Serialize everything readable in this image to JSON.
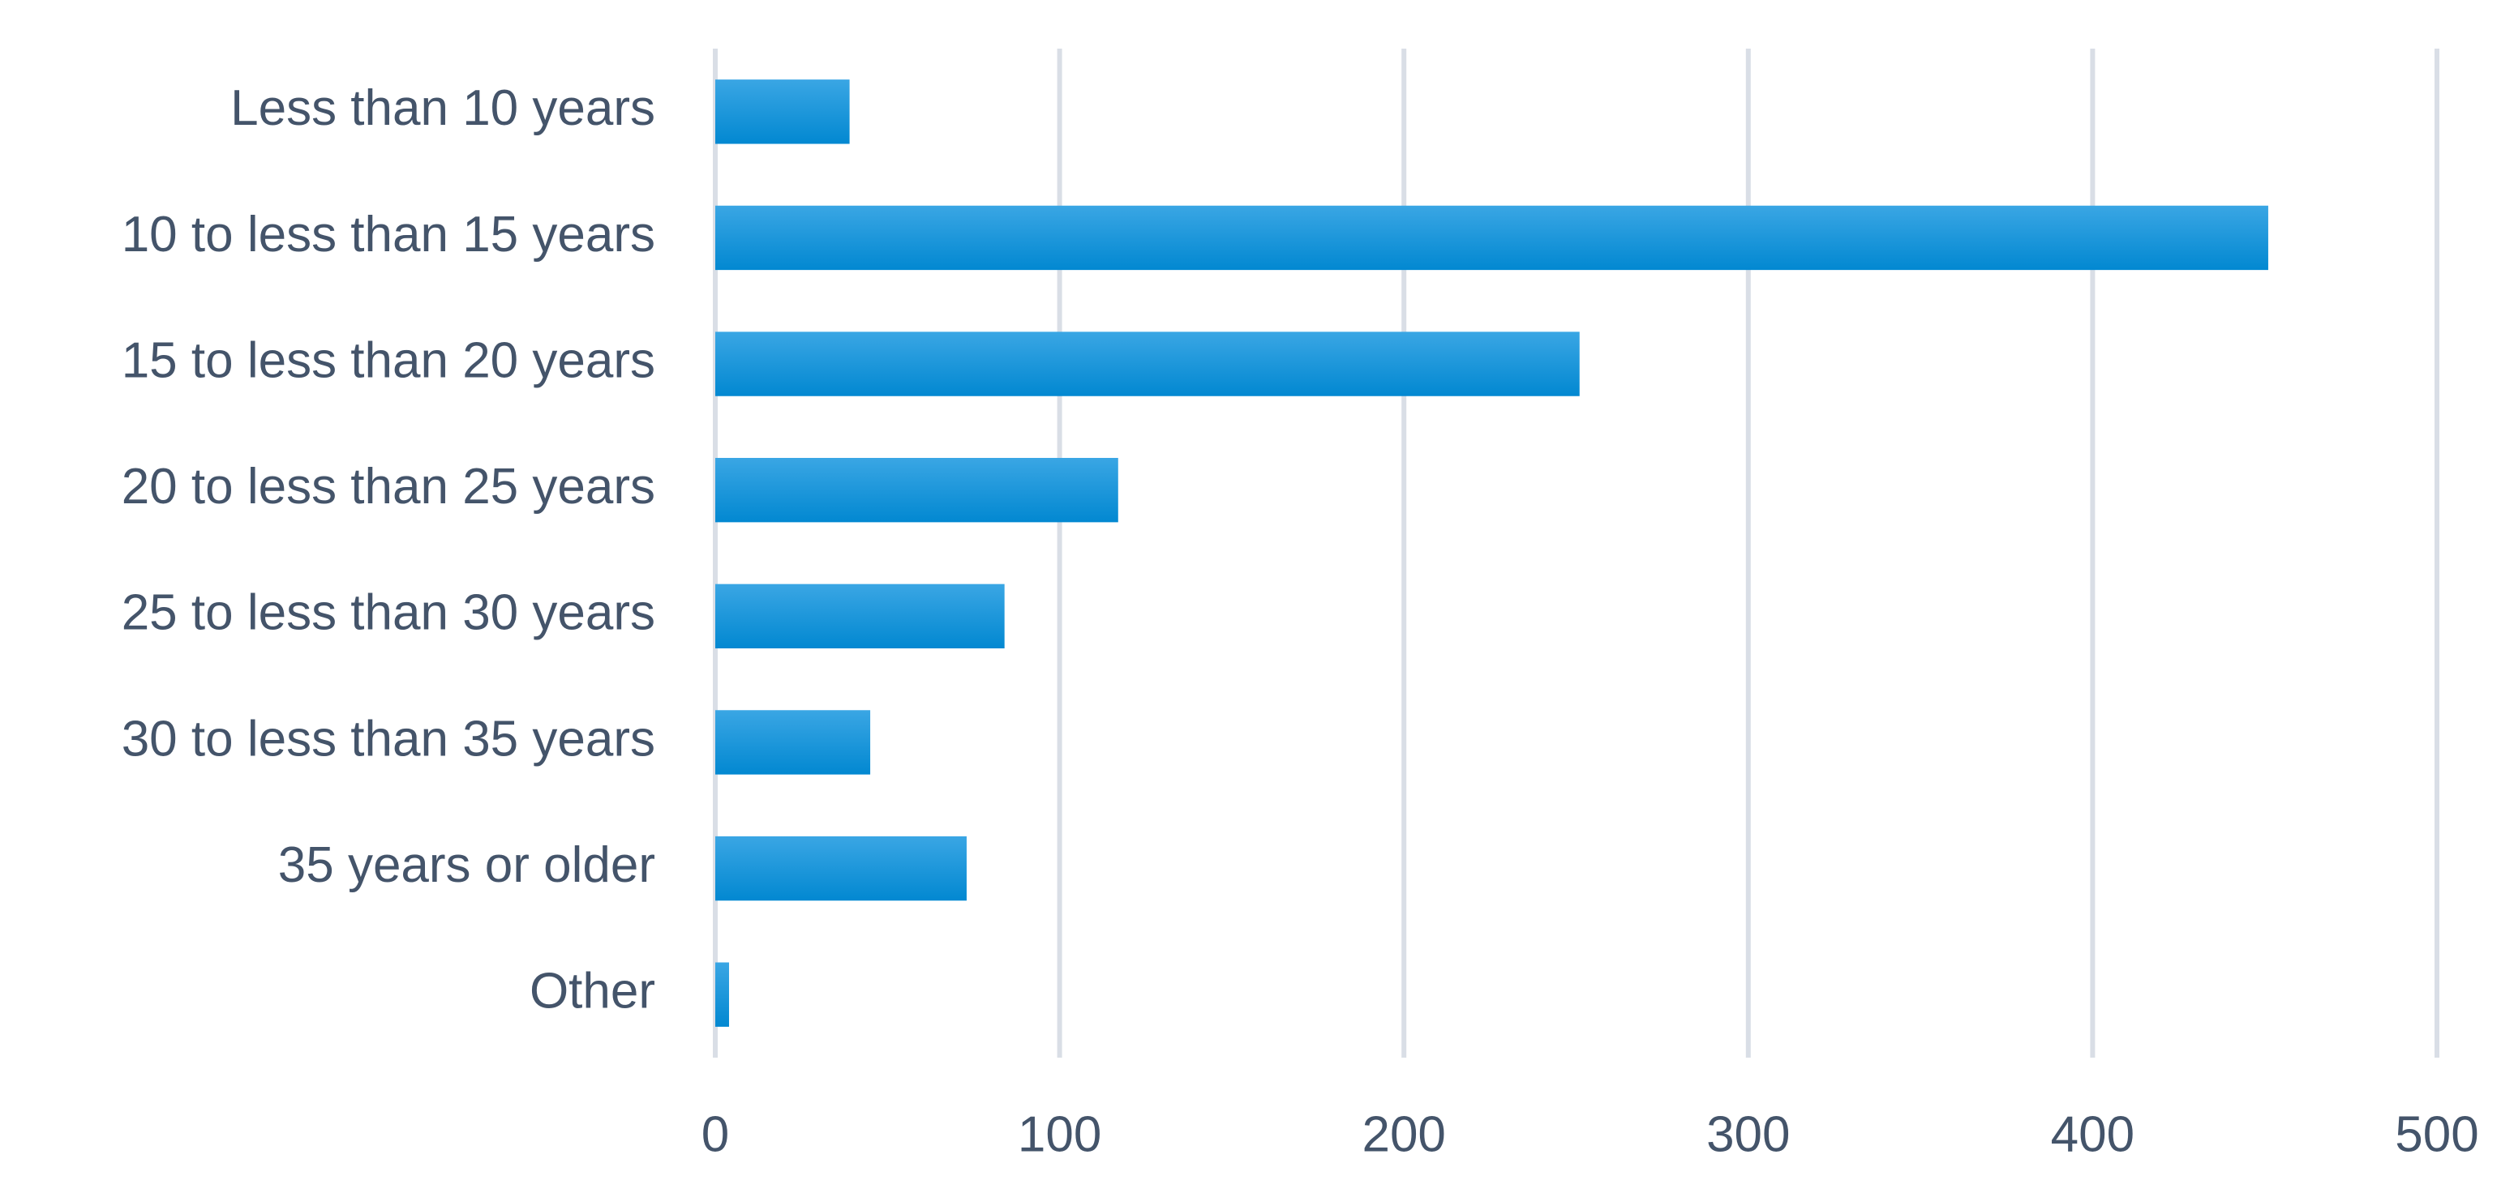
{
  "chart_data": {
    "type": "bar",
    "horizontal": true,
    "categories": [
      "Less than 10 years",
      "10 to less than 15 years",
      "15 to less than 20 years",
      "20 to less than 25 years",
      "25 to less than 30 years",
      "30 to less than 35 years",
      "35 years or older",
      "Other"
    ],
    "values": [
      39,
      451,
      251,
      117,
      84,
      45,
      73,
      4
    ],
    "color": "#0a8fd6",
    "xlim": [
      0,
      500
    ],
    "xticks": [
      0,
      100,
      200,
      300,
      400,
      500
    ],
    "grid": true
  }
}
